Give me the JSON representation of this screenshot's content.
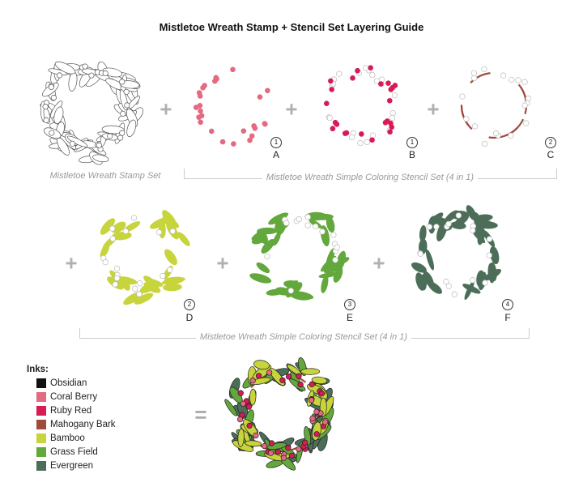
{
  "title": "Mistletoe Wreath Stamp + Stencil Set Layering Guide",
  "stamp_caption": "Mistletoe Wreath Stamp Set",
  "stencil_caption_1": "Mistletoe Wreath Simple Coloring Stencil Set (4 in 1)",
  "stencil_caption_2": "Mistletoe Wreath Simple Coloring Stencil Set (4 in 1)",
  "operators": {
    "plus": "+",
    "equals": "="
  },
  "layers": [
    {
      "letter": "A",
      "stencil": "1",
      "ink": "Coral Berry",
      "color": "#e36a80"
    },
    {
      "letter": "B",
      "stencil": "1",
      "ink": "Ruby Red",
      "color": "#d81b55"
    },
    {
      "letter": "C",
      "stencil": "2",
      "ink": "Mahogany Bark",
      "color": "#a04a3c"
    },
    {
      "letter": "D",
      "stencil": "2",
      "ink": "Bamboo",
      "color": "#c8d43c"
    },
    {
      "letter": "E",
      "stencil": "3",
      "ink": "Grass Field",
      "color": "#62a83c"
    },
    {
      "letter": "F",
      "stencil": "4",
      "ink": "Evergreen",
      "color": "#4c6e58"
    }
  ],
  "inks": {
    "heading": "Inks:",
    "items": [
      {
        "name": "Obsidian",
        "color": "#111111"
      },
      {
        "name": "Coral Berry",
        "color": "#e36a80"
      },
      {
        "name": "Ruby Red",
        "color": "#d81b55"
      },
      {
        "name": "Mahogany Bark",
        "color": "#a04a3c"
      },
      {
        "name": "Bamboo",
        "color": "#c8d43c"
      },
      {
        "name": "Grass Field",
        "color": "#62a83c"
      },
      {
        "name": "Evergreen",
        "color": "#4c6e58"
      }
    ]
  }
}
